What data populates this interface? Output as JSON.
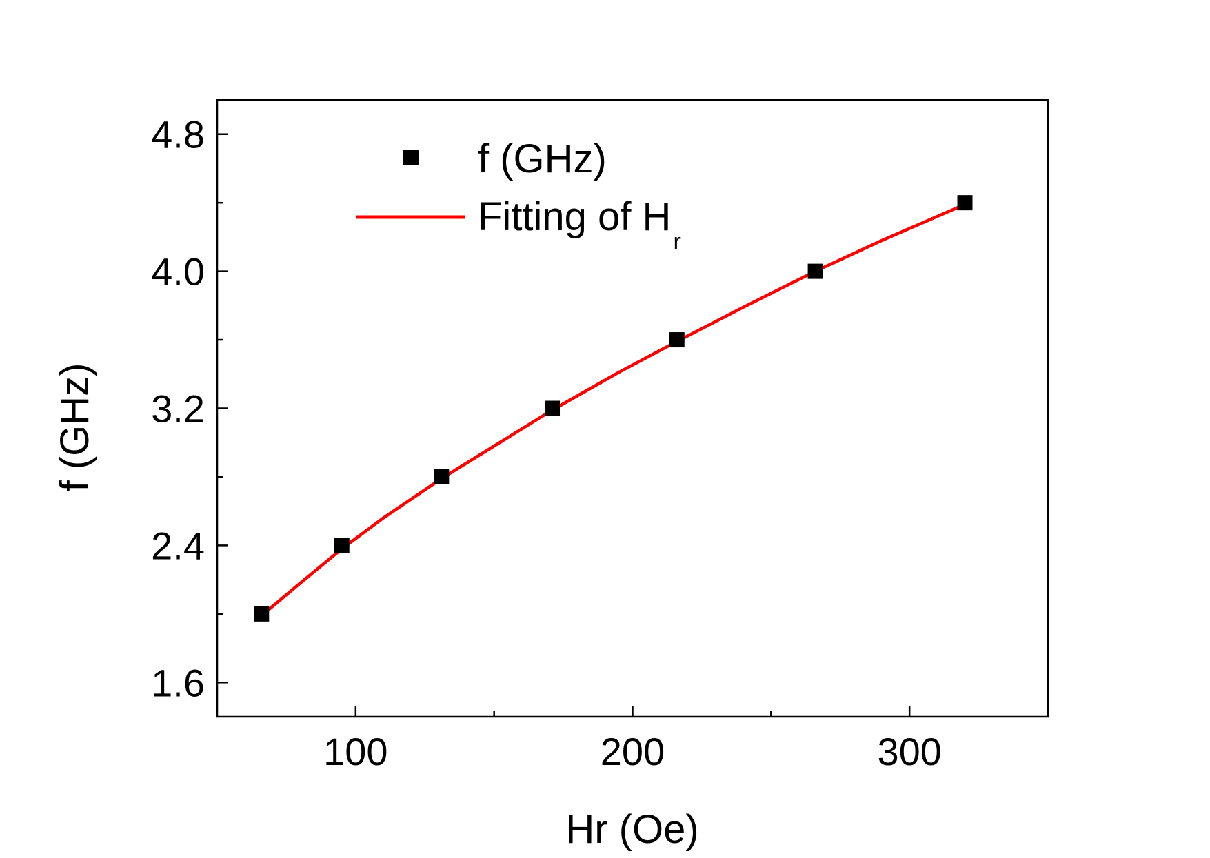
{
  "chart_data": {
    "type": "scatter",
    "xlabel": "Hr (Oe)",
    "ylabel": "f (GHz)",
    "xlim": [
      50,
      350
    ],
    "ylim": [
      1.4,
      5.0
    ],
    "x_ticks": [
      100,
      200,
      300
    ],
    "x_tick_labels": [
      "100",
      "200",
      "300"
    ],
    "x_minor_ticks": [
      150,
      250
    ],
    "y_ticks": [
      1.6,
      2.4,
      3.2,
      4.0,
      4.8
    ],
    "y_tick_labels": [
      "1.6",
      "2.4",
      "3.2",
      "4.0",
      "4.8"
    ],
    "y_minor_ticks": [
      2.0,
      2.8,
      3.6,
      4.4
    ],
    "grid": false,
    "legend_position": "top-left",
    "series": [
      {
        "name": "f (GHz)",
        "kind": "scatter",
        "marker": "square",
        "color": "#000000",
        "x": [
          66,
          95,
          131,
          171,
          216,
          266,
          320
        ],
        "y": [
          2.0,
          2.4,
          2.8,
          3.2,
          3.6,
          4.0,
          4.4
        ]
      },
      {
        "name": "Fitting of H",
        "name_subscript": "r",
        "kind": "line",
        "color": "#ff0000",
        "x": [
          66,
          80,
          95,
          110,
          131,
          150,
          171,
          195,
          216,
          240,
          266,
          290,
          320
        ],
        "y": [
          1.99,
          2.18,
          2.38,
          2.56,
          2.79,
          2.98,
          3.19,
          3.41,
          3.59,
          3.79,
          4.0,
          4.18,
          4.39
        ]
      }
    ]
  }
}
